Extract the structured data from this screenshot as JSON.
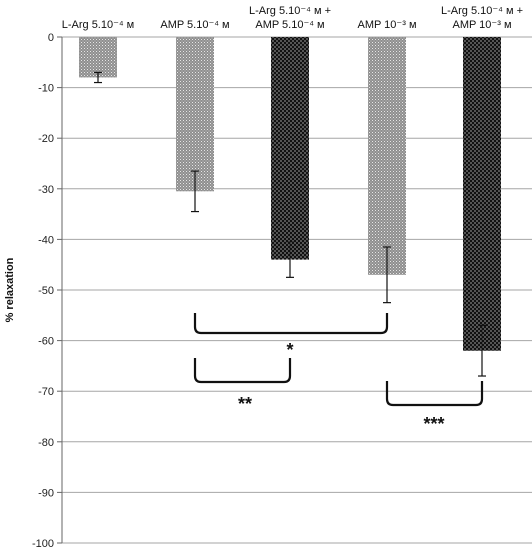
{
  "chart_data": {
    "type": "bar",
    "title": "",
    "xlabel": "",
    "ylabel": "% relaxation",
    "ylim": [
      -100,
      0
    ],
    "y_ticks": [
      0,
      -10,
      -20,
      -30,
      -40,
      -50,
      -60,
      -70,
      -80,
      -90,
      -100
    ],
    "grid": true,
    "categories": [
      [
        "L-Arg 5.10⁻⁴ м"
      ],
      [
        "AMP 5.10⁻⁴ м"
      ],
      [
        "L-Arg 5.10⁻⁴ м +",
        "AMP 5.10⁻⁴ м"
      ],
      [
        "AMP 10⁻³ м"
      ],
      [
        "L-Arg 5.10⁻⁴ м +",
        "AMP 10⁻³ м"
      ]
    ],
    "values": [
      -8,
      -30.5,
      -44,
      -47,
      -62
    ],
    "errors": [
      1,
      4,
      3.5,
      5.5,
      5
    ],
    "bar_fill": [
      "gray-dots",
      "gray-dots",
      "black-dots",
      "gray-dots",
      "black-dots"
    ],
    "significance": [
      {
        "from_bar": 1,
        "to_bar": 3,
        "label": "*"
      },
      {
        "from_bar": 1,
        "to_bar": 2,
        "label": "**"
      },
      {
        "from_bar": 3,
        "to_bar": 4,
        "label": "***"
      }
    ]
  }
}
